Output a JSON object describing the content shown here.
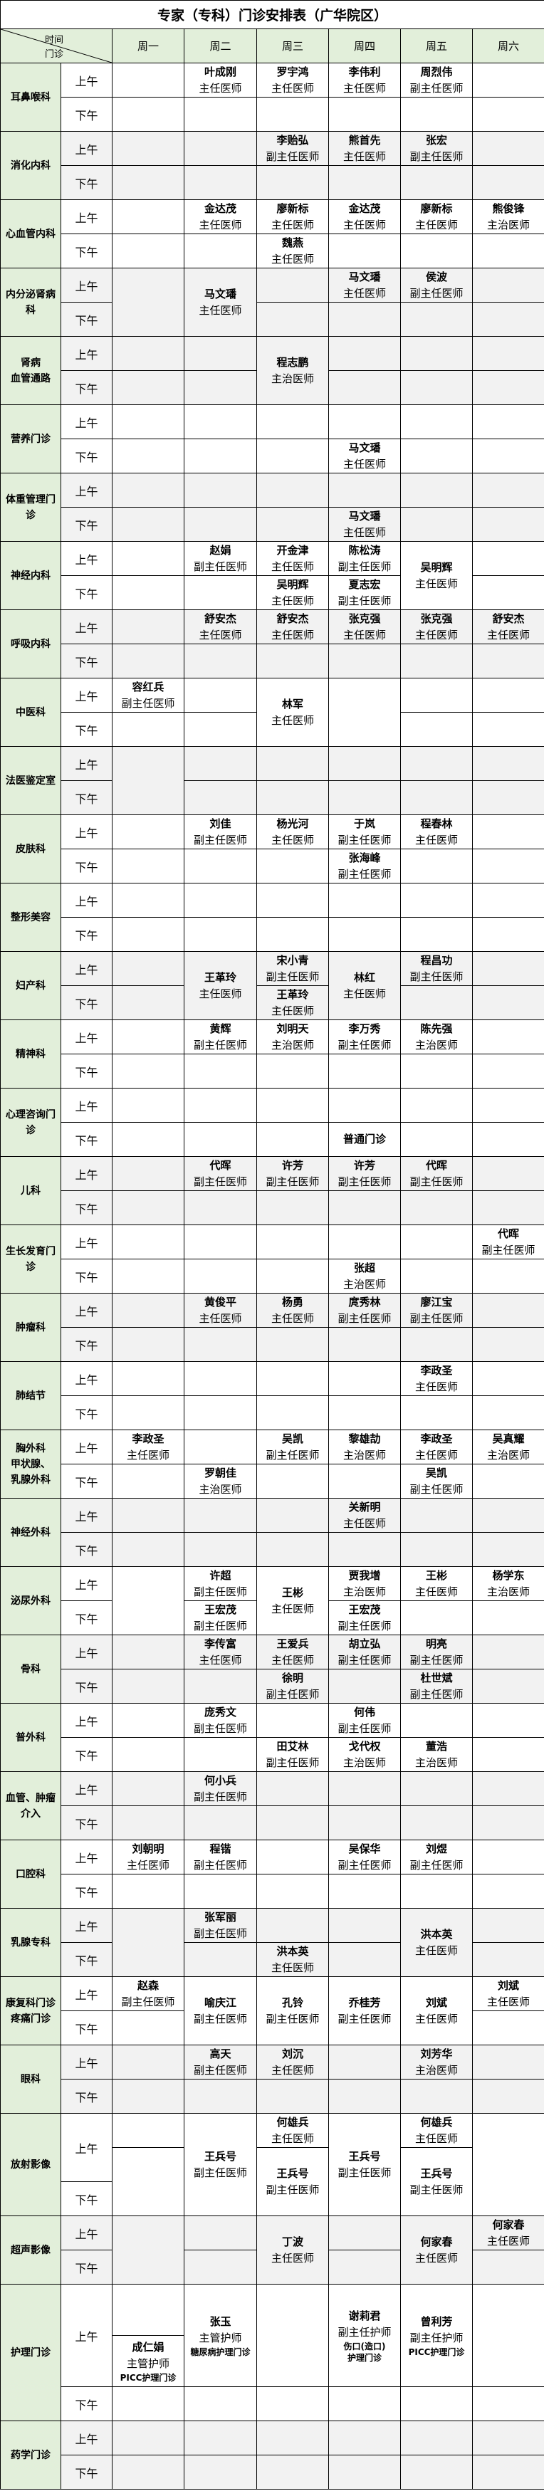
{
  "title": "专家（专科）门诊安排表（广华院区）",
  "header": {
    "corner_top": "时间",
    "corner_bottom": "门诊",
    "days": [
      "周一",
      "周二",
      "周三",
      "周四",
      "周五",
      "周六"
    ]
  },
  "labels": {
    "am": "上午",
    "pm": "下午"
  },
  "colors": {
    "dept_bg": "#e2efda",
    "shade": "#f2f2f2",
    "border": "#000000"
  },
  "departments": [
    {
      "name": "耳鼻喉科",
      "shaded": false,
      "cells": [
        {
          "day": 1,
          "slot": "am",
          "lines": [
            "叶成刚",
            "主任医师"
          ]
        },
        {
          "day": 2,
          "slot": "am",
          "lines": [
            "罗宇鸿",
            "主任医师"
          ]
        },
        {
          "day": 3,
          "slot": "am",
          "lines": [
            "李伟利",
            "主任医师"
          ]
        },
        {
          "day": 4,
          "slot": "am",
          "lines": [
            "周烈伟",
            "副主任医师"
          ]
        }
      ]
    },
    {
      "name": "消化内科",
      "shaded": true,
      "cells": [
        {
          "day": 2,
          "slot": "am",
          "lines": [
            "李贻弘",
            "副主任医师"
          ]
        },
        {
          "day": 3,
          "slot": "am",
          "lines": [
            "熊首先",
            "主任医师"
          ]
        },
        {
          "day": 4,
          "slot": "am",
          "lines": [
            "张宏",
            "副主任医师"
          ]
        }
      ]
    },
    {
      "name": "心血管内科",
      "shaded": false,
      "cells": [
        {
          "day": 1,
          "slot": "am",
          "lines": [
            "金达茂",
            "主任医师"
          ]
        },
        {
          "day": 2,
          "slot": "am",
          "lines": [
            "廖新标",
            "主任医师"
          ]
        },
        {
          "day": 3,
          "slot": "am",
          "lines": [
            "金达茂",
            "主任医师"
          ]
        },
        {
          "day": 4,
          "slot": "am",
          "lines": [
            "廖新标",
            "主任医师"
          ]
        },
        {
          "day": 5,
          "slot": "am",
          "lines": [
            "熊俊锋",
            "主治医师"
          ]
        },
        {
          "day": 2,
          "slot": "pm",
          "lines": [
            "魏燕",
            "主任医师"
          ]
        }
      ]
    },
    {
      "name": "内分泌肾病科",
      "shaded": true,
      "cells": [
        {
          "day": 0,
          "slot": "both",
          "lines": []
        },
        {
          "day": 1,
          "slot": "both",
          "lines": [
            "马文璠",
            "主任医师"
          ]
        },
        {
          "day": 3,
          "slot": "am",
          "lines": [
            "马文璠",
            "主任医师"
          ]
        },
        {
          "day": 4,
          "slot": "am",
          "lines": [
            "侯波",
            "副主任医师"
          ]
        }
      ]
    },
    {
      "name": "肾病\n血管通路",
      "shaded": true,
      "cells": [
        {
          "day": 2,
          "slot": "both",
          "lines": [
            "程志鹏",
            "主治医师"
          ]
        }
      ]
    },
    {
      "name": "营养门诊",
      "shaded": false,
      "cells": [
        {
          "day": 3,
          "slot": "pm",
          "lines": [
            "马文璠",
            "主任医师"
          ]
        }
      ]
    },
    {
      "name": "体重管理门诊",
      "shaded": true,
      "cells": [
        {
          "day": 3,
          "slot": "pm",
          "lines": [
            "马文璠",
            "主任医师"
          ]
        }
      ]
    },
    {
      "name": "神经内科",
      "shaded": false,
      "cells": [
        {
          "day": 1,
          "slot": "am",
          "lines": [
            "赵娟",
            "副主任医师"
          ]
        },
        {
          "day": 2,
          "slot": "am",
          "lines": [
            "开金津",
            "主任医师"
          ]
        },
        {
          "day": 3,
          "slot": "am",
          "lines": [
            "陈松涛",
            "副主任医师"
          ]
        },
        {
          "day": 4,
          "slot": "both",
          "lines": [
            "吴明辉",
            "主任医师"
          ]
        },
        {
          "day": 2,
          "slot": "pm",
          "lines": [
            "吴明辉",
            "主任医师"
          ]
        },
        {
          "day": 3,
          "slot": "pm",
          "lines": [
            "夏志宏",
            "副主任医师"
          ]
        }
      ]
    },
    {
      "name": "呼吸内科",
      "shaded": true,
      "cells": [
        {
          "day": 1,
          "slot": "am",
          "lines": [
            "舒安杰",
            "主任医师"
          ]
        },
        {
          "day": 2,
          "slot": "am",
          "lines": [
            "舒安杰",
            "主任医师"
          ]
        },
        {
          "day": 3,
          "slot": "am",
          "lines": [
            "张克强",
            "主任医师"
          ]
        },
        {
          "day": 4,
          "slot": "am",
          "lines": [
            "张克强",
            "主任医师"
          ]
        },
        {
          "day": 5,
          "slot": "am",
          "lines": [
            "舒安杰",
            "主任医师"
          ]
        }
      ]
    },
    {
      "name": "中医科",
      "shaded": false,
      "cells": [
        {
          "day": 0,
          "slot": "am",
          "lines": [
            "容红兵",
            "副主任医师"
          ]
        },
        {
          "day": 2,
          "slot": "both",
          "lines": [
            "林军",
            "主任医师"
          ]
        },
        {
          "day": 3,
          "slot": "both",
          "lines": []
        }
      ]
    },
    {
      "name": "法医鉴定室",
      "shaded": true,
      "cells": [
        {
          "day": 0,
          "slot": "both",
          "lines": []
        }
      ]
    },
    {
      "name": "皮肤科",
      "shaded": false,
      "cells": [
        {
          "day": 1,
          "slot": "am",
          "lines": [
            "刘佳",
            "副主任医师"
          ]
        },
        {
          "day": 2,
          "slot": "am",
          "lines": [
            "杨光河",
            "主任医师"
          ]
        },
        {
          "day": 3,
          "slot": "am",
          "lines": [
            "于岚",
            "副主任医师"
          ]
        },
        {
          "day": 4,
          "slot": "am",
          "lines": [
            "程春林",
            "主任医师"
          ]
        },
        {
          "day": 3,
          "slot": "pm",
          "lines": [
            "张海峰",
            "副主任医师"
          ]
        }
      ]
    },
    {
      "name": "整形美容",
      "shaded": false,
      "cells": []
    },
    {
      "name": "妇产科",
      "shaded": true,
      "cells": [
        {
          "day": 1,
          "slot": "both",
          "lines": [
            "王革玲",
            "主任医师"
          ]
        },
        {
          "day": 2,
          "slot": "am",
          "lines": [
            "宋小青",
            "副主任医师"
          ]
        },
        {
          "day": 2,
          "slot": "pm",
          "lines": [
            "王革玲",
            "主任医师"
          ]
        },
        {
          "day": 3,
          "slot": "both",
          "lines": [
            "林红",
            "主任医师"
          ]
        },
        {
          "day": 4,
          "slot": "am",
          "lines": [
            "程昌功",
            "副主任医师"
          ]
        }
      ]
    },
    {
      "name": "精神科",
      "shaded": false,
      "cells": [
        {
          "day": 1,
          "slot": "am",
          "lines": [
            "黄辉",
            "副主任医师"
          ]
        },
        {
          "day": 2,
          "slot": "am",
          "lines": [
            "刘明天",
            "主治医师"
          ]
        },
        {
          "day": 3,
          "slot": "am",
          "lines": [
            "李万秀",
            "副主任医师"
          ]
        },
        {
          "day": 4,
          "slot": "am",
          "lines": [
            "陈先强",
            "主治医师"
          ]
        }
      ]
    },
    {
      "name": "心理咨询门诊",
      "shaded": false,
      "cells": [
        {
          "day": 3,
          "slot": "pm",
          "lines": [
            "普通门诊"
          ]
        }
      ]
    },
    {
      "name": "儿科",
      "shaded": true,
      "cells": [
        {
          "day": 1,
          "slot": "am",
          "lines": [
            "代晖",
            "副主任医师"
          ]
        },
        {
          "day": 2,
          "slot": "am",
          "lines": [
            "许芳",
            "副主任医师"
          ]
        },
        {
          "day": 3,
          "slot": "am",
          "lines": [
            "许芳",
            "副主任医师"
          ]
        },
        {
          "day": 4,
          "slot": "am",
          "lines": [
            "代晖",
            "副主任医师"
          ]
        }
      ]
    },
    {
      "name": "生长发育门诊",
      "shaded": false,
      "cells": [
        {
          "day": 5,
          "slot": "am",
          "lines": [
            "代晖",
            "副主任医师"
          ]
        },
        {
          "day": 3,
          "slot": "pm",
          "lines": [
            "张超",
            "主治医师"
          ]
        }
      ]
    },
    {
      "name": "肿瘤科",
      "shaded": true,
      "cells": [
        {
          "day": 1,
          "slot": "am",
          "lines": [
            "黄俊平",
            "主任医师"
          ]
        },
        {
          "day": 2,
          "slot": "am",
          "lines": [
            "杨勇",
            "主任医师"
          ]
        },
        {
          "day": 3,
          "slot": "am",
          "lines": [
            "庹秀林",
            "副主任医师"
          ]
        },
        {
          "day": 4,
          "slot": "am",
          "lines": [
            "廖江宝",
            "副主任医师"
          ]
        }
      ]
    },
    {
      "name": "肺结节",
      "shaded": false,
      "cells": [
        {
          "day": 4,
          "slot": "am",
          "lines": [
            "李政圣",
            "主任医师"
          ]
        }
      ]
    },
    {
      "name": "胸外科\n甲状腺、\n乳腺外科",
      "shaded": false,
      "cells": [
        {
          "day": 0,
          "slot": "am",
          "lines": [
            "李政圣",
            "主任医师"
          ]
        },
        {
          "day": 2,
          "slot": "am",
          "lines": [
            "吴凯",
            "副主任医师"
          ]
        },
        {
          "day": 3,
          "slot": "am",
          "lines": [
            "黎雄劼",
            "主治医师"
          ]
        },
        {
          "day": 4,
          "slot": "am",
          "lines": [
            "李政圣",
            "主任医师"
          ]
        },
        {
          "day": 5,
          "slot": "am",
          "lines": [
            "吴真耀",
            "主治医师"
          ]
        },
        {
          "day": 1,
          "slot": "pm",
          "lines": [
            "罗朝佳",
            "主治医师"
          ]
        },
        {
          "day": 4,
          "slot": "pm",
          "lines": [
            "吴凯",
            "副主任医师"
          ]
        }
      ]
    },
    {
      "name": "神经外科",
      "shaded": true,
      "cells": [
        {
          "day": 3,
          "slot": "am",
          "lines": [
            "关新明",
            "主任医师"
          ]
        }
      ]
    },
    {
      "name": "泌尿外科",
      "shaded": false,
      "cells": [
        {
          "day": 0,
          "slot": "both",
          "lines": []
        },
        {
          "day": 1,
          "slot": "am",
          "lines": [
            "许超",
            "副主任医师"
          ]
        },
        {
          "day": 1,
          "slot": "pm",
          "lines": [
            "王宏茂",
            "副主任医师"
          ]
        },
        {
          "day": 2,
          "slot": "both",
          "lines": [
            "王彬",
            "主任医师"
          ]
        },
        {
          "day": 3,
          "slot": "am",
          "lines": [
            "贾我增",
            "主治医师"
          ]
        },
        {
          "day": 3,
          "slot": "pm",
          "lines": [
            "王宏茂",
            "副主任医师"
          ]
        },
        {
          "day": 4,
          "slot": "am",
          "lines": [
            "王彬",
            "主任医师"
          ]
        },
        {
          "day": 5,
          "slot": "am",
          "lines": [
            "杨学东",
            "主治医师"
          ]
        }
      ]
    },
    {
      "name": "骨科",
      "shaded": true,
      "cells": [
        {
          "day": 1,
          "slot": "am",
          "lines": [
            "李传富",
            "主任医师"
          ]
        },
        {
          "day": 2,
          "slot": "am",
          "lines": [
            "王爱兵",
            "主任医师"
          ]
        },
        {
          "day": 3,
          "slot": "am",
          "lines": [
            "胡立弘",
            "副主任医师"
          ]
        },
        {
          "day": 4,
          "slot": "am",
          "lines": [
            "明亮",
            "副主任医师"
          ]
        },
        {
          "day": 2,
          "slot": "pm",
          "lines": [
            "徐明",
            "副主任医师"
          ]
        },
        {
          "day": 4,
          "slot": "pm",
          "lines": [
            "杜世斌",
            "副主任医师"
          ]
        }
      ]
    },
    {
      "name": "普外科",
      "shaded": false,
      "cells": [
        {
          "day": 1,
          "slot": "am",
          "lines": [
            "庞秀文",
            "副主任医师"
          ]
        },
        {
          "day": 3,
          "slot": "am",
          "lines": [
            "何伟",
            "副主任医师"
          ]
        },
        {
          "day": 2,
          "slot": "pm",
          "lines": [
            "田艾林",
            "副主任医师"
          ]
        },
        {
          "day": 3,
          "slot": "pm",
          "lines": [
            "戈代权",
            "主治医师"
          ]
        },
        {
          "day": 4,
          "slot": "pm",
          "lines": [
            "董浩",
            "主治医师"
          ]
        }
      ]
    },
    {
      "name": "血管、肿瘤\n介入",
      "shaded": true,
      "cells": [
        {
          "day": 1,
          "slot": "am",
          "lines": [
            "何小兵",
            "副主任医师"
          ]
        }
      ]
    },
    {
      "name": "口腔科",
      "shaded": false,
      "cells": [
        {
          "day": 0,
          "slot": "am",
          "lines": [
            "刘朝明",
            "主任医师"
          ]
        },
        {
          "day": 1,
          "slot": "am",
          "lines": [
            "程锴",
            "副主任医师"
          ]
        },
        {
          "day": 3,
          "slot": "am",
          "lines": [
            "吴保华",
            "副主任医师"
          ]
        },
        {
          "day": 4,
          "slot": "am",
          "lines": [
            "刘煜",
            "副主任医师"
          ]
        }
      ]
    },
    {
      "name": "乳腺专科",
      "shaded": true,
      "cells": [
        {
          "day": 0,
          "slot": "both",
          "lines": []
        },
        {
          "day": 1,
          "slot": "am",
          "lines": [
            "张军丽",
            "副主任医师"
          ]
        },
        {
          "day": 2,
          "slot": "pm",
          "lines": [
            "洪本英",
            "主任医师"
          ]
        },
        {
          "day": 4,
          "slot": "both",
          "lines": [
            "洪本英",
            "主任医师"
          ]
        }
      ]
    },
    {
      "name": "康复科门诊\n疼痛门诊",
      "shaded": false,
      "cells": [
        {
          "day": 0,
          "slot": "am",
          "lines": [
            "赵森",
            "副主任医师"
          ]
        },
        {
          "day": 1,
          "slot": "both",
          "lines": [
            "喻庆江",
            "副主任医师"
          ]
        },
        {
          "day": 2,
          "slot": "both",
          "lines": [
            "孔铃",
            "副主任医师"
          ]
        },
        {
          "day": 3,
          "slot": "both",
          "lines": [
            "乔桂芳",
            "副主任医师"
          ]
        },
        {
          "day": 4,
          "slot": "both",
          "lines": [
            "刘斌",
            "主任医师"
          ]
        },
        {
          "day": 5,
          "slot": "am",
          "lines": [
            "刘斌",
            "主任医师"
          ]
        }
      ]
    },
    {
      "name": "眼科",
      "shaded": true,
      "cells": [
        {
          "day": 1,
          "slot": "am",
          "lines": [
            "高天",
            "副主任医师"
          ]
        },
        {
          "day": 2,
          "slot": "am",
          "lines": [
            "刘沉",
            "主任医师"
          ]
        },
        {
          "day": 4,
          "slot": "am",
          "lines": [
            "刘芳华",
            "主治医师"
          ]
        }
      ]
    },
    {
      "name": "放射影像",
      "shaded": false,
      "cells": [
        {
          "day": 0,
          "slot": "am-early",
          "lines": []
        },
        {
          "day": 0,
          "slot": "am-late+pm",
          "lines": []
        },
        {
          "day": 1,
          "slot": "both",
          "lines": [
            "王兵号",
            "副主任医师"
          ]
        },
        {
          "day": 2,
          "slot": "am-early",
          "lines": [
            "何雄兵",
            "主任医师"
          ]
        },
        {
          "day": 2,
          "slot": "am-late+pm",
          "lines": [
            "王兵号",
            "副主任医师"
          ]
        },
        {
          "day": 3,
          "slot": "both",
          "lines": [
            "王兵号",
            "副主任医师"
          ]
        },
        {
          "day": 4,
          "slot": "am-early",
          "lines": [
            "何雄兵",
            "主任医师"
          ]
        },
        {
          "day": 4,
          "slot": "am-late+pm",
          "lines": [
            "王兵号",
            "副主任医师"
          ]
        },
        {
          "day": 5,
          "slot": "both",
          "lines": []
        }
      ]
    },
    {
      "name": "超声影像",
      "shaded": true,
      "cells": [
        {
          "day": 0,
          "slot": "both",
          "lines": []
        },
        {
          "day": 2,
          "slot": "both",
          "lines": [
            "丁波",
            "主任医师"
          ]
        },
        {
          "day": 4,
          "slot": "both",
          "lines": [
            "何家春",
            "主任医师"
          ]
        },
        {
          "day": 5,
          "slot": "am",
          "lines": [
            "何家春",
            "主任医师"
          ]
        }
      ]
    },
    {
      "name": "护理门诊",
      "shaded": false,
      "cells": [
        {
          "day": 0,
          "slot": "am-early",
          "lines": []
        },
        {
          "day": 0,
          "slot": "am-late",
          "lines": [
            "成仁娟",
            "主管护师"
          ],
          "notes": [
            "PICC护理门诊"
          ]
        },
        {
          "day": 1,
          "slot": "am",
          "lines": [
            "张玉",
            "主管护师"
          ],
          "notes": [
            "糖尿病护理门诊"
          ]
        },
        {
          "day": 3,
          "slot": "am",
          "lines": [
            "谢莉君",
            "副主任护师"
          ],
          "notes": [
            "伤口(造口)",
            "护理门诊"
          ]
        },
        {
          "day": 4,
          "slot": "am",
          "lines": [
            "曾利芳",
            "副主任护师"
          ],
          "notes": [
            "PICC护理门诊"
          ]
        }
      ]
    },
    {
      "name": "药学门诊",
      "shaded": true,
      "cells": []
    }
  ]
}
